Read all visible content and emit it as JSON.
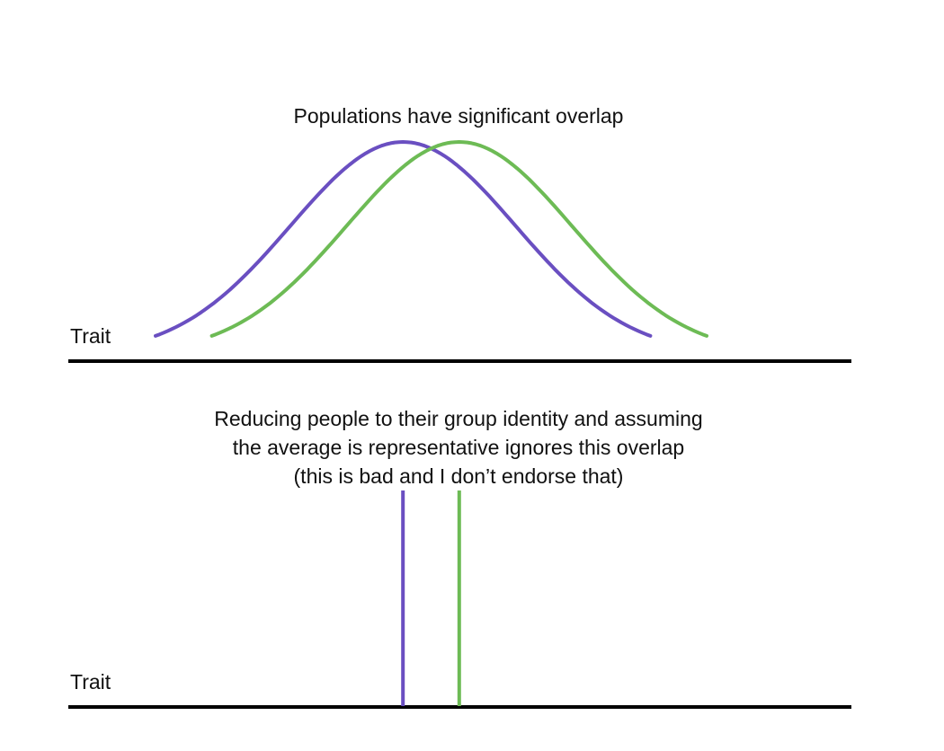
{
  "top_panel": {
    "caption": "Populations have significant overlap",
    "axis_label": "Trait"
  },
  "bottom_panel": {
    "caption_lines": [
      "Reducing people to their group identity and assuming",
      "the average is representative ignores this overlap",
      "(this is bad and I don’t endorse that)"
    ],
    "axis_label": "Trait"
  },
  "colors": {
    "population_a": "#6a4fc1",
    "population_b": "#6dbb55",
    "axis": "#000000"
  },
  "populations": [
    {
      "color_key": "population_a",
      "mean": 0.0,
      "sd": 1.0
    },
    {
      "color_key": "population_b",
      "mean": 0.5,
      "sd": 1.0
    }
  ],
  "trait_range": [
    -2.2,
    2.7
  ]
}
